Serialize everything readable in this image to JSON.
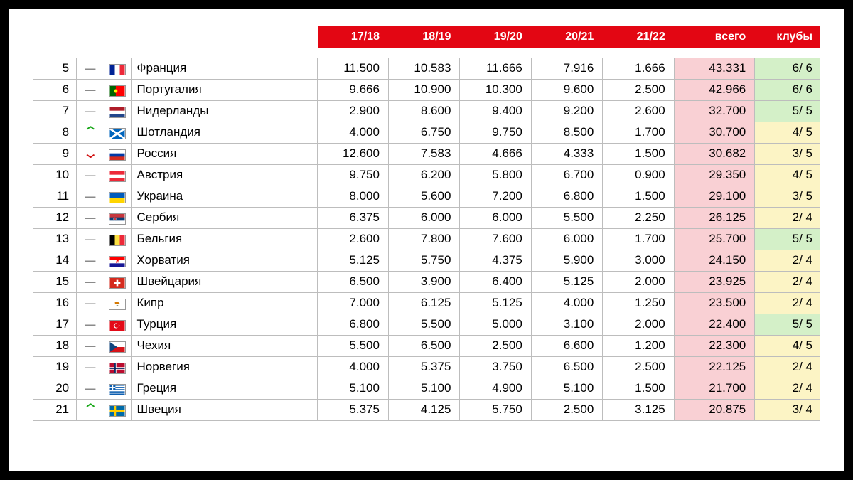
{
  "header": {
    "seasons": [
      "17/18",
      "18/19",
      "19/20",
      "20/21",
      "21/22"
    ],
    "total_label": "всего",
    "clubs_label": "клубы"
  },
  "colors": {
    "header_bg": "#e30613",
    "total_bg": "#f9d0d4",
    "clubs_full_bg": "#d4f0c8",
    "clubs_partial_bg": "#fcf4c5",
    "arrow_up": "#1aa81a",
    "arrow_down": "#d11313",
    "arrow_same": "#8a8a8a"
  },
  "rows": [
    {
      "rank": 5,
      "move": "same",
      "flag": "FR",
      "country": "Франция",
      "s": [
        "11.500",
        "10.583",
        "11.666",
        "7.916",
        "1.666"
      ],
      "total": "43.331",
      "clubs": "6/ 6",
      "clubs_bg": "green"
    },
    {
      "rank": 6,
      "move": "same",
      "flag": "PT",
      "country": "Португалия",
      "s": [
        "9.666",
        "10.900",
        "10.300",
        "9.600",
        "2.500"
      ],
      "total": "42.966",
      "clubs": "6/ 6",
      "clubs_bg": "green"
    },
    {
      "rank": 7,
      "move": "same",
      "flag": "NL",
      "country": "Нидерланды",
      "s": [
        "2.900",
        "8.600",
        "9.400",
        "9.200",
        "2.600"
      ],
      "total": "32.700",
      "clubs": "5/ 5",
      "clubs_bg": "green"
    },
    {
      "rank": 8,
      "move": "up",
      "flag": "SCO",
      "country": "Шотландия",
      "s": [
        "4.000",
        "6.750",
        "9.750",
        "8.500",
        "1.700"
      ],
      "total": "30.700",
      "clubs": "4/ 5",
      "clubs_bg": "yellow"
    },
    {
      "rank": 9,
      "move": "down",
      "flag": "RU",
      "country": "Россия",
      "s": [
        "12.600",
        "7.583",
        "4.666",
        "4.333",
        "1.500"
      ],
      "total": "30.682",
      "clubs": "3/ 5",
      "clubs_bg": "yellow"
    },
    {
      "rank": 10,
      "move": "same",
      "flag": "AT",
      "country": "Австрия",
      "s": [
        "9.750",
        "6.200",
        "5.800",
        "6.700",
        "0.900"
      ],
      "total": "29.350",
      "clubs": "4/ 5",
      "clubs_bg": "yellow"
    },
    {
      "rank": 11,
      "move": "same",
      "flag": "UA",
      "country": "Украина",
      "s": [
        "8.000",
        "5.600",
        "7.200",
        "6.800",
        "1.500"
      ],
      "total": "29.100",
      "clubs": "3/ 5",
      "clubs_bg": "yellow"
    },
    {
      "rank": 12,
      "move": "same",
      "flag": "RS",
      "country": "Сербия",
      "s": [
        "6.375",
        "6.000",
        "6.000",
        "5.500",
        "2.250"
      ],
      "total": "26.125",
      "clubs": "2/ 4",
      "clubs_bg": "yellow"
    },
    {
      "rank": 13,
      "move": "same",
      "flag": "BE",
      "country": "Бельгия",
      "s": [
        "2.600",
        "7.800",
        "7.600",
        "6.000",
        "1.700"
      ],
      "total": "25.700",
      "clubs": "5/ 5",
      "clubs_bg": "green"
    },
    {
      "rank": 14,
      "move": "same",
      "flag": "HR",
      "country": "Хорватия",
      "s": [
        "5.125",
        "5.750",
        "4.375",
        "5.900",
        "3.000"
      ],
      "total": "24.150",
      "clubs": "2/ 4",
      "clubs_bg": "yellow"
    },
    {
      "rank": 15,
      "move": "same",
      "flag": "CH",
      "country": "Швейцария",
      "s": [
        "6.500",
        "3.900",
        "6.400",
        "5.125",
        "2.000"
      ],
      "total": "23.925",
      "clubs": "2/ 4",
      "clubs_bg": "yellow"
    },
    {
      "rank": 16,
      "move": "same",
      "flag": "CY",
      "country": "Кипр",
      "s": [
        "7.000",
        "6.125",
        "5.125",
        "4.000",
        "1.250"
      ],
      "total": "23.500",
      "clubs": "2/ 4",
      "clubs_bg": "yellow"
    },
    {
      "rank": 17,
      "move": "same",
      "flag": "TR",
      "country": "Турция",
      "s": [
        "6.800",
        "5.500",
        "5.000",
        "3.100",
        "2.000"
      ],
      "total": "22.400",
      "clubs": "5/ 5",
      "clubs_bg": "green"
    },
    {
      "rank": 18,
      "move": "same",
      "flag": "CZ",
      "country": "Чехия",
      "s": [
        "5.500",
        "6.500",
        "2.500",
        "6.600",
        "1.200"
      ],
      "total": "22.300",
      "clubs": "4/ 5",
      "clubs_bg": "yellow"
    },
    {
      "rank": 19,
      "move": "same",
      "flag": "NO",
      "country": "Норвегия",
      "s": [
        "4.000",
        "5.375",
        "3.750",
        "6.500",
        "2.500"
      ],
      "total": "22.125",
      "clubs": "2/ 4",
      "clubs_bg": "yellow"
    },
    {
      "rank": 20,
      "move": "same",
      "flag": "GR",
      "country": "Греция",
      "s": [
        "5.100",
        "5.100",
        "4.900",
        "5.100",
        "1.500"
      ],
      "total": "21.700",
      "clubs": "2/ 4",
      "clubs_bg": "yellow"
    },
    {
      "rank": 21,
      "move": "up",
      "flag": "SE",
      "country": "Швеция",
      "s": [
        "5.375",
        "4.125",
        "5.750",
        "2.500",
        "3.125"
      ],
      "total": "20.875",
      "clubs": "3/ 4",
      "clubs_bg": "yellow"
    }
  ]
}
